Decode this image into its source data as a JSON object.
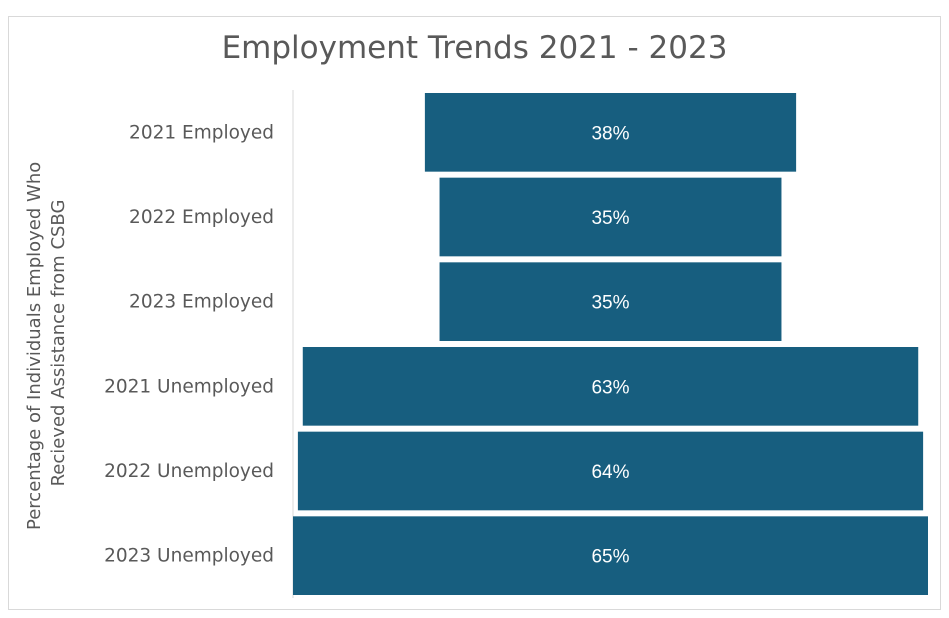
{
  "chart_data": {
    "type": "bar",
    "orientation": "horizontal-funnel",
    "title": "Employment Trends 2021 - 2023",
    "ylabel_lines": [
      "Percentage of Individuals Employed Who",
      "Recieved Assistance from CSBG"
    ],
    "categories": [
      "2021 Employed",
      "2022 Employed",
      "2023 Employed",
      "2021 Unemployed",
      "2022 Unemployed",
      "2023 Unemployed"
    ],
    "values": [
      38,
      35,
      35,
      63,
      64,
      65
    ],
    "value_labels": [
      "38%",
      "35%",
      "35%",
      "63%",
      "64%",
      "65%"
    ],
    "grid": false,
    "legend": "none",
    "colors": {
      "bar": "#175E7F",
      "text": "#595959",
      "axis": "#d9d9d9"
    }
  }
}
